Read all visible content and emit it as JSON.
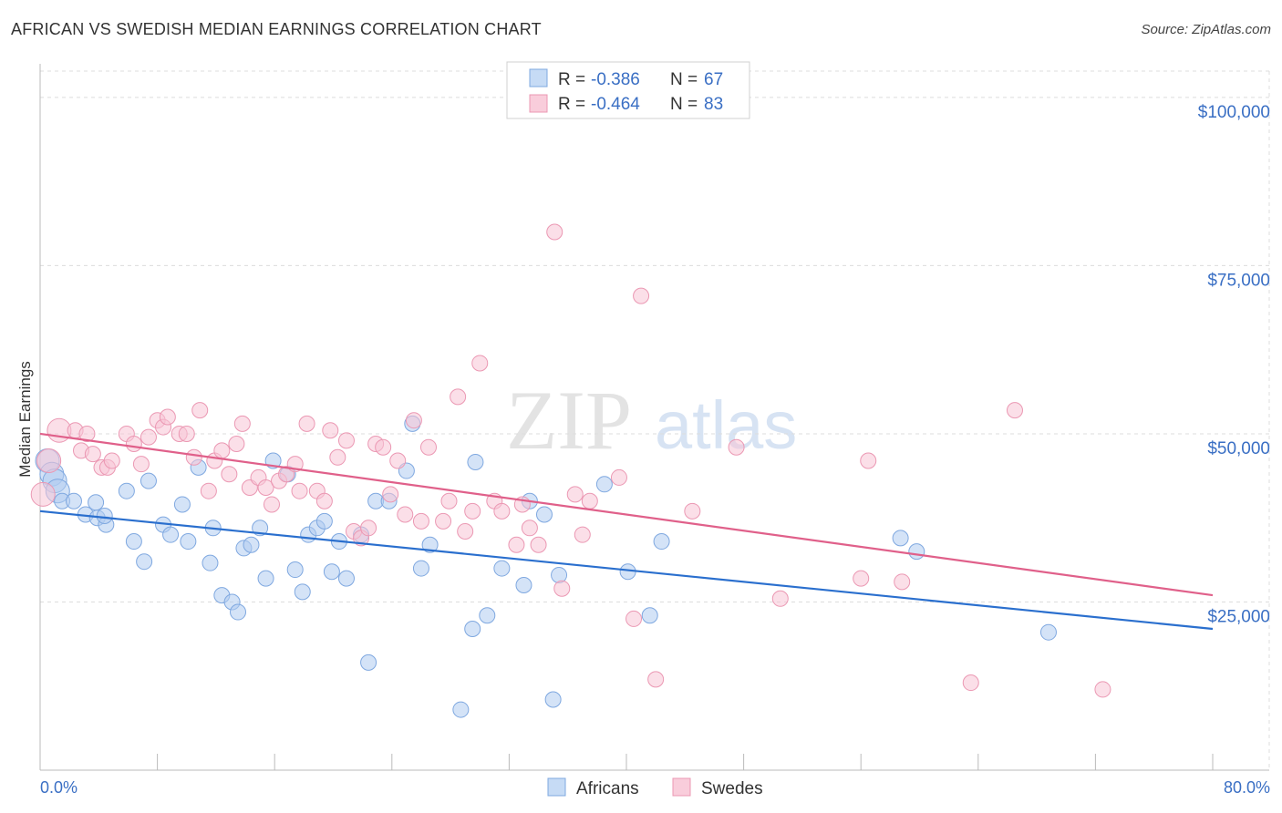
{
  "header": {
    "title": "AFRICAN VS SWEDISH MEDIAN EARNINGS CORRELATION CHART",
    "source": "Source: ZipAtlas.com"
  },
  "watermark": {
    "zip": "ZIP",
    "atlas": "atlas"
  },
  "legend": {
    "r_label": "R =",
    "n_label": "N =",
    "rows": [
      {
        "r": "-0.386",
        "n": "67"
      },
      {
        "r": "-0.464",
        "n": "83"
      }
    ]
  },
  "chart_data": {
    "type": "scatter",
    "title": "AFRICAN VS SWEDISH MEDIAN EARNINGS CORRELATION CHART",
    "xlabel": "",
    "ylabel": "Median Earnings",
    "xlim": [
      0,
      80
    ],
    "ylim": [
      0,
      105000
    ],
    "x_tick_labels": [
      "0.0%",
      "80.0%"
    ],
    "y_ticks": [
      25000,
      50000,
      75000,
      100000
    ],
    "y_tick_labels": [
      "$25,000",
      "$50,000",
      "$75,000",
      "$100,000"
    ],
    "grid": true,
    "legend_position": "top-center",
    "colors": {
      "africans": "#6fa3e6",
      "swedes": "#f0a0bb",
      "africans_line": "#2a6fce",
      "swedes_line": "#e0608a"
    },
    "series": [
      {
        "name": "Africans",
        "r": -0.386,
        "n": 67,
        "trend": {
          "x": [
            0,
            80
          ],
          "y": [
            38500,
            21000
          ]
        },
        "points": [
          [
            0.5,
            46000
          ],
          [
            0.8,
            44000
          ],
          [
            1.0,
            43000
          ],
          [
            1.2,
            41500
          ],
          [
            1.5,
            40000
          ],
          [
            2.3,
            40000
          ],
          [
            3.1,
            38000
          ],
          [
            3.8,
            39800
          ],
          [
            3.9,
            37500
          ],
          [
            4.5,
            36500
          ],
          [
            4.4,
            37800
          ],
          [
            5.9,
            41500
          ],
          [
            6.4,
            34000
          ],
          [
            7.1,
            31000
          ],
          [
            7.4,
            43000
          ],
          [
            8.4,
            36500
          ],
          [
            8.9,
            35000
          ],
          [
            9.7,
            39500
          ],
          [
            10.1,
            34000
          ],
          [
            10.8,
            45000
          ],
          [
            11.6,
            30800
          ],
          [
            11.8,
            36000
          ],
          [
            12.4,
            26000
          ],
          [
            13.1,
            25000
          ],
          [
            13.5,
            23500
          ],
          [
            13.9,
            33000
          ],
          [
            14.4,
            33500
          ],
          [
            15.0,
            36000
          ],
          [
            15.4,
            28500
          ],
          [
            15.9,
            46000
          ],
          [
            16.9,
            44000
          ],
          [
            17.4,
            29800
          ],
          [
            17.9,
            26500
          ],
          [
            18.3,
            35000
          ],
          [
            18.9,
            36000
          ],
          [
            19.4,
            37000
          ],
          [
            19.9,
            29500
          ],
          [
            20.4,
            34000
          ],
          [
            20.9,
            28500
          ],
          [
            21.9,
            35000
          ],
          [
            22.4,
            16000
          ],
          [
            22.9,
            40000
          ],
          [
            23.8,
            40000
          ],
          [
            25.0,
            44500
          ],
          [
            25.4,
            51500
          ],
          [
            26.0,
            30000
          ],
          [
            26.6,
            33500
          ],
          [
            28.7,
            9000
          ],
          [
            29.5,
            21000
          ],
          [
            29.7,
            45800
          ],
          [
            30.5,
            23000
          ],
          [
            31.5,
            30000
          ],
          [
            33.0,
            27500
          ],
          [
            33.4,
            40000
          ],
          [
            34.4,
            38000
          ],
          [
            35.0,
            10500
          ],
          [
            35.4,
            29000
          ],
          [
            38.5,
            42500
          ],
          [
            40.1,
            29500
          ],
          [
            41.6,
            23000
          ],
          [
            42.4,
            34000
          ],
          [
            58.7,
            34500
          ],
          [
            59.8,
            32500
          ],
          [
            68.8,
            20500
          ]
        ]
      },
      {
        "name": "Swedes",
        "r": -0.464,
        "n": 83,
        "trend": {
          "x": [
            0,
            80
          ],
          "y": [
            50000,
            26000
          ]
        },
        "points": [
          [
            0.2,
            41000
          ],
          [
            0.6,
            46000
          ],
          [
            1.3,
            50500
          ],
          [
            2.4,
            50500
          ],
          [
            3.2,
            50000
          ],
          [
            2.8,
            47500
          ],
          [
            3.6,
            47000
          ],
          [
            4.2,
            45000
          ],
          [
            4.6,
            45000
          ],
          [
            4.9,
            46000
          ],
          [
            5.9,
            50000
          ],
          [
            6.4,
            48500
          ],
          [
            6.9,
            45500
          ],
          [
            7.4,
            49500
          ],
          [
            8.0,
            52000
          ],
          [
            8.4,
            51000
          ],
          [
            8.7,
            52500
          ],
          [
            9.5,
            50000
          ],
          [
            10.0,
            50000
          ],
          [
            10.5,
            46500
          ],
          [
            10.9,
            53500
          ],
          [
            11.5,
            41500
          ],
          [
            11.9,
            46000
          ],
          [
            12.4,
            47500
          ],
          [
            12.9,
            44000
          ],
          [
            13.4,
            48500
          ],
          [
            13.8,
            51500
          ],
          [
            14.3,
            42000
          ],
          [
            14.9,
            43500
          ],
          [
            15.4,
            42000
          ],
          [
            15.8,
            39500
          ],
          [
            16.3,
            43000
          ],
          [
            16.8,
            44000
          ],
          [
            17.4,
            45500
          ],
          [
            17.7,
            41500
          ],
          [
            18.2,
            51500
          ],
          [
            18.9,
            41500
          ],
          [
            19.4,
            40000
          ],
          [
            19.8,
            50500
          ],
          [
            20.3,
            46500
          ],
          [
            20.9,
            49000
          ],
          [
            21.4,
            35500
          ],
          [
            21.9,
            34500
          ],
          [
            22.4,
            36000
          ],
          [
            22.9,
            48500
          ],
          [
            23.4,
            48000
          ],
          [
            23.9,
            41000
          ],
          [
            24.4,
            46000
          ],
          [
            24.9,
            38000
          ],
          [
            25.5,
            52000
          ],
          [
            26.0,
            37000
          ],
          [
            26.5,
            48000
          ],
          [
            27.5,
            37000
          ],
          [
            27.9,
            40000
          ],
          [
            28.5,
            55500
          ],
          [
            29.0,
            35500
          ],
          [
            29.5,
            38500
          ],
          [
            30.0,
            60500
          ],
          [
            31.0,
            40000
          ],
          [
            31.5,
            38500
          ],
          [
            32.5,
            33500
          ],
          [
            32.9,
            39500
          ],
          [
            33.4,
            36000
          ],
          [
            34.0,
            33500
          ],
          [
            35.1,
            80000
          ],
          [
            35.6,
            27000
          ],
          [
            36.5,
            41000
          ],
          [
            37.0,
            35000
          ],
          [
            37.5,
            40000
          ],
          [
            39.5,
            43500
          ],
          [
            40.5,
            22500
          ],
          [
            41.0,
            70500
          ],
          [
            42.0,
            13500
          ],
          [
            44.5,
            38500
          ],
          [
            47.5,
            48000
          ],
          [
            50.5,
            25500
          ],
          [
            56.0,
            28500
          ],
          [
            56.5,
            46000
          ],
          [
            58.8,
            28000
          ],
          [
            63.5,
            13000
          ],
          [
            66.5,
            53500
          ],
          [
            72.5,
            12000
          ]
        ]
      }
    ]
  },
  "bottom_legend": {
    "items": [
      "Africans",
      "Swedes"
    ]
  }
}
